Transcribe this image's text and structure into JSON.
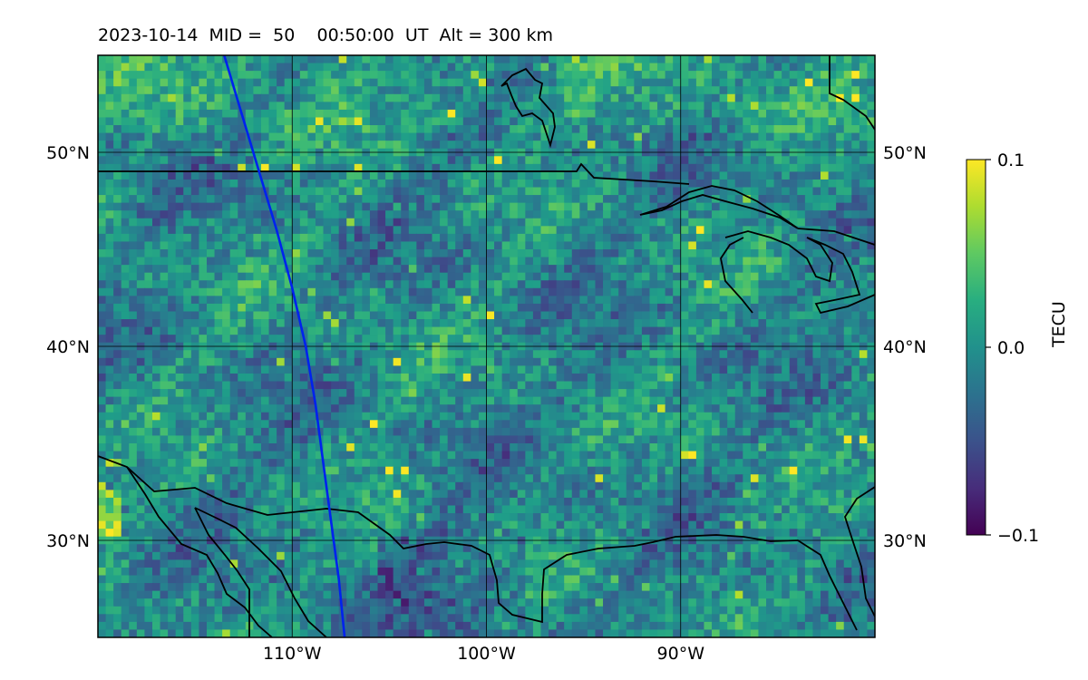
{
  "title": "2023-10-14  MID =  50    00:50:00  UT  Alt = 300 km",
  "map": {
    "lon_range": [
      -120,
      -80
    ],
    "lat_range": [
      25,
      55
    ],
    "lat_ticks": [
      {
        "value": 50,
        "label": "50°N"
      },
      {
        "value": 40,
        "label": "40°N"
      },
      {
        "value": 30,
        "label": "30°N"
      }
    ],
    "lon_ticks": [
      {
        "value": -110,
        "label": "110°W"
      },
      {
        "value": -100,
        "label": "100°W"
      },
      {
        "value": -90,
        "label": "90°W"
      }
    ],
    "grid": true,
    "coastlines_color": "#000000",
    "track_color": "#0022ee",
    "track": [
      [
        -113.5,
        55
      ],
      [
        -112.6,
        52
      ],
      [
        -111.7,
        49
      ],
      [
        -110.8,
        46
      ],
      [
        -110.0,
        43
      ],
      [
        -109.3,
        40
      ],
      [
        -108.8,
        37
      ],
      [
        -108.4,
        34
      ],
      [
        -108.0,
        31
      ],
      [
        -107.6,
        28
      ],
      [
        -107.3,
        25
      ]
    ]
  },
  "colorbar": {
    "label": "TECU",
    "colormap": "viridis",
    "min": -0.1,
    "max": 0.1,
    "ticks": [
      {
        "value": 0.1,
        "label": "0.1"
      },
      {
        "value": 0.0,
        "label": "0.0"
      },
      {
        "value": -0.1,
        "label": "−0.1"
      }
    ]
  }
}
